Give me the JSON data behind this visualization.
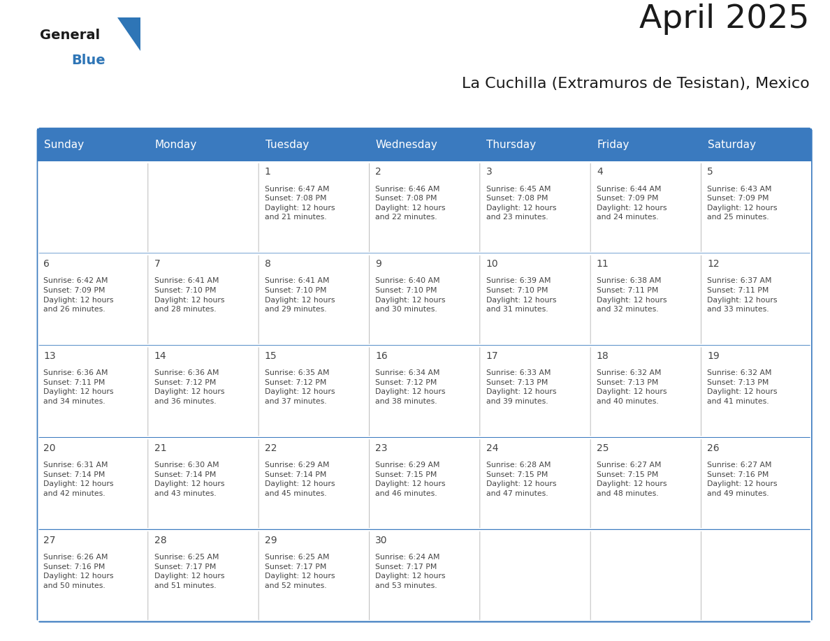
{
  "title": "April 2025",
  "subtitle": "La Cuchilla (Extramuros de Tesistan), Mexico",
  "header_bg_color": "#3a7abf",
  "header_text_color": "#ffffff",
  "cell_bg_color": "#ffffff",
  "border_color": "#3a7abf",
  "row_border_color": "#3a7abf",
  "col_border_color": "#b0b0b0",
  "text_color": "#444444",
  "logo_color_general": "#1a1a1a",
  "logo_color_blue": "#2e75b6",
  "days_of_week": [
    "Sunday",
    "Monday",
    "Tuesday",
    "Wednesday",
    "Thursday",
    "Friday",
    "Saturday"
  ],
  "weeks": [
    [
      {
        "day": "",
        "info": ""
      },
      {
        "day": "",
        "info": ""
      },
      {
        "day": "1",
        "info": "Sunrise: 6:47 AM\nSunset: 7:08 PM\nDaylight: 12 hours\nand 21 minutes."
      },
      {
        "day": "2",
        "info": "Sunrise: 6:46 AM\nSunset: 7:08 PM\nDaylight: 12 hours\nand 22 minutes."
      },
      {
        "day": "3",
        "info": "Sunrise: 6:45 AM\nSunset: 7:08 PM\nDaylight: 12 hours\nand 23 minutes."
      },
      {
        "day": "4",
        "info": "Sunrise: 6:44 AM\nSunset: 7:09 PM\nDaylight: 12 hours\nand 24 minutes."
      },
      {
        "day": "5",
        "info": "Sunrise: 6:43 AM\nSunset: 7:09 PM\nDaylight: 12 hours\nand 25 minutes."
      }
    ],
    [
      {
        "day": "6",
        "info": "Sunrise: 6:42 AM\nSunset: 7:09 PM\nDaylight: 12 hours\nand 26 minutes."
      },
      {
        "day": "7",
        "info": "Sunrise: 6:41 AM\nSunset: 7:10 PM\nDaylight: 12 hours\nand 28 minutes."
      },
      {
        "day": "8",
        "info": "Sunrise: 6:41 AM\nSunset: 7:10 PM\nDaylight: 12 hours\nand 29 minutes."
      },
      {
        "day": "9",
        "info": "Sunrise: 6:40 AM\nSunset: 7:10 PM\nDaylight: 12 hours\nand 30 minutes."
      },
      {
        "day": "10",
        "info": "Sunrise: 6:39 AM\nSunset: 7:10 PM\nDaylight: 12 hours\nand 31 minutes."
      },
      {
        "day": "11",
        "info": "Sunrise: 6:38 AM\nSunset: 7:11 PM\nDaylight: 12 hours\nand 32 minutes."
      },
      {
        "day": "12",
        "info": "Sunrise: 6:37 AM\nSunset: 7:11 PM\nDaylight: 12 hours\nand 33 minutes."
      }
    ],
    [
      {
        "day": "13",
        "info": "Sunrise: 6:36 AM\nSunset: 7:11 PM\nDaylight: 12 hours\nand 34 minutes."
      },
      {
        "day": "14",
        "info": "Sunrise: 6:36 AM\nSunset: 7:12 PM\nDaylight: 12 hours\nand 36 minutes."
      },
      {
        "day": "15",
        "info": "Sunrise: 6:35 AM\nSunset: 7:12 PM\nDaylight: 12 hours\nand 37 minutes."
      },
      {
        "day": "16",
        "info": "Sunrise: 6:34 AM\nSunset: 7:12 PM\nDaylight: 12 hours\nand 38 minutes."
      },
      {
        "day": "17",
        "info": "Sunrise: 6:33 AM\nSunset: 7:13 PM\nDaylight: 12 hours\nand 39 minutes."
      },
      {
        "day": "18",
        "info": "Sunrise: 6:32 AM\nSunset: 7:13 PM\nDaylight: 12 hours\nand 40 minutes."
      },
      {
        "day": "19",
        "info": "Sunrise: 6:32 AM\nSunset: 7:13 PM\nDaylight: 12 hours\nand 41 minutes."
      }
    ],
    [
      {
        "day": "20",
        "info": "Sunrise: 6:31 AM\nSunset: 7:14 PM\nDaylight: 12 hours\nand 42 minutes."
      },
      {
        "day": "21",
        "info": "Sunrise: 6:30 AM\nSunset: 7:14 PM\nDaylight: 12 hours\nand 43 minutes."
      },
      {
        "day": "22",
        "info": "Sunrise: 6:29 AM\nSunset: 7:14 PM\nDaylight: 12 hours\nand 45 minutes."
      },
      {
        "day": "23",
        "info": "Sunrise: 6:29 AM\nSunset: 7:15 PM\nDaylight: 12 hours\nand 46 minutes."
      },
      {
        "day": "24",
        "info": "Sunrise: 6:28 AM\nSunset: 7:15 PM\nDaylight: 12 hours\nand 47 minutes."
      },
      {
        "day": "25",
        "info": "Sunrise: 6:27 AM\nSunset: 7:15 PM\nDaylight: 12 hours\nand 48 minutes."
      },
      {
        "day": "26",
        "info": "Sunrise: 6:27 AM\nSunset: 7:16 PM\nDaylight: 12 hours\nand 49 minutes."
      }
    ],
    [
      {
        "day": "27",
        "info": "Sunrise: 6:26 AM\nSunset: 7:16 PM\nDaylight: 12 hours\nand 50 minutes."
      },
      {
        "day": "28",
        "info": "Sunrise: 6:25 AM\nSunset: 7:17 PM\nDaylight: 12 hours\nand 51 minutes."
      },
      {
        "day": "29",
        "info": "Sunrise: 6:25 AM\nSunset: 7:17 PM\nDaylight: 12 hours\nand 52 minutes."
      },
      {
        "day": "30",
        "info": "Sunrise: 6:24 AM\nSunset: 7:17 PM\nDaylight: 12 hours\nand 53 minutes."
      },
      {
        "day": "",
        "info": ""
      },
      {
        "day": "",
        "info": ""
      },
      {
        "day": "",
        "info": ""
      }
    ]
  ],
  "title_fontsize": 34,
  "subtitle_fontsize": 16,
  "day_num_fontsize": 10,
  "cell_text_fontsize": 7.8,
  "header_fontsize": 11
}
